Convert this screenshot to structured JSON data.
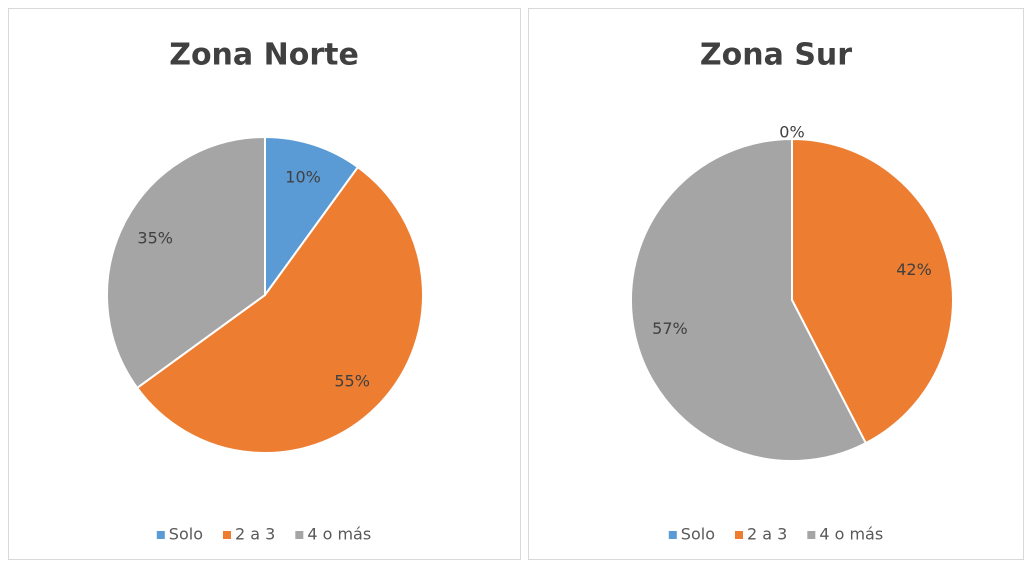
{
  "chart_data": [
    {
      "type": "pie",
      "title": "Zona Norte",
      "categories": [
        "Solo",
        "2 a 3",
        "4 o más"
      ],
      "values": [
        10,
        55,
        35
      ],
      "value_labels": [
        "10%",
        "55%",
        "35%"
      ],
      "colors": [
        "#5b9bd5",
        "#ed7d31",
        "#a5a5a5"
      ]
    },
    {
      "type": "pie",
      "title": "Zona Sur",
      "categories": [
        "Solo",
        "2 a 3",
        "4 o más"
      ],
      "values": [
        0,
        42,
        57
      ],
      "value_labels": [
        "0%",
        "42%",
        "57%"
      ],
      "colors": [
        "#5b9bd5",
        "#ed7d31",
        "#a5a5a5"
      ]
    }
  ]
}
